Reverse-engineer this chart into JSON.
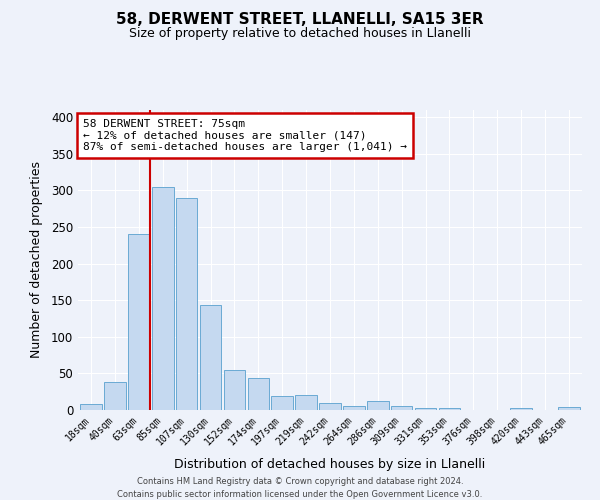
{
  "title": "58, DERWENT STREET, LLANELLI, SA15 3ER",
  "subtitle": "Size of property relative to detached houses in Llanelli",
  "xlabel": "Distribution of detached houses by size in Llanelli",
  "ylabel": "Number of detached properties",
  "bar_labels": [
    "18sqm",
    "40sqm",
    "63sqm",
    "85sqm",
    "107sqm",
    "130sqm",
    "152sqm",
    "174sqm",
    "197sqm",
    "219sqm",
    "242sqm",
    "264sqm",
    "286sqm",
    "309sqm",
    "331sqm",
    "353sqm",
    "376sqm",
    "398sqm",
    "420sqm",
    "443sqm",
    "465sqm"
  ],
  "bar_values": [
    8,
    38,
    241,
    305,
    290,
    143,
    55,
    44,
    19,
    20,
    9,
    6,
    12,
    5,
    3,
    3,
    0,
    0,
    3,
    0,
    4
  ],
  "bar_color": "#c5d9f0",
  "bar_edge_color": "#6aaad4",
  "ylim": [
    0,
    410
  ],
  "yticks": [
    0,
    50,
    100,
    150,
    200,
    250,
    300,
    350,
    400
  ],
  "vline_color": "#cc0000",
  "annotation_title": "58 DERWENT STREET: 75sqm",
  "annotation_line1": "← 12% of detached houses are smaller (147)",
  "annotation_line2": "87% of semi-detached houses are larger (1,041) →",
  "annotation_box_color": "#cc0000",
  "plot_bg_color": "#eef2fa",
  "fig_bg_color": "#eef2fa",
  "grid_color": "#ffffff",
  "footer_line1": "Contains HM Land Registry data © Crown copyright and database right 2024.",
  "footer_line2": "Contains public sector information licensed under the Open Government Licence v3.0."
}
